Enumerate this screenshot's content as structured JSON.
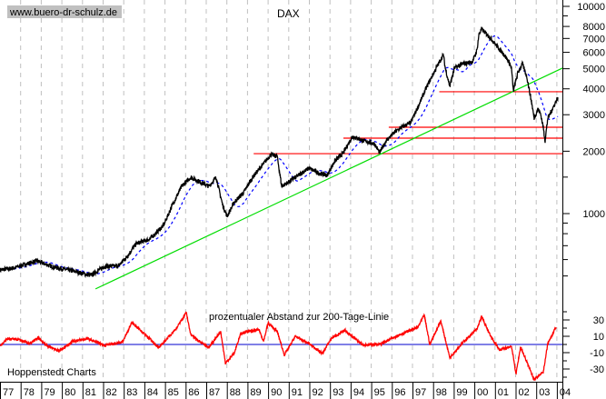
{
  "watermark": "www.buero-dr-schulz.de",
  "colors": {
    "price": "#000000",
    "moving_average": "#0000ff",
    "support_lines": "#ff0000",
    "trend_line": "#00dd00",
    "oscillator": "#ff0000",
    "zero_line": "#0000cc",
    "grid": "#c0c0c0",
    "watermark_bg": "#c0c0c0"
  },
  "chart_data": [
    {
      "type": "line",
      "title": "DAX",
      "y_scale": "log",
      "ylim": [
        400,
        11000
      ],
      "y_ticks": [
        10000,
        8000,
        7000,
        6000,
        5000,
        4000,
        3000,
        2000,
        1000
      ],
      "y_tick_labels": [
        "10000",
        "8000",
        "7000",
        "6000",
        "5000",
        "4000",
        "3000",
        "2000",
        "1000"
      ],
      "x_tick_labels": [
        "77",
        "78",
        "79",
        "80",
        "81",
        "82",
        "83",
        "84",
        "85",
        "86",
        "87",
        "88",
        "89",
        "90",
        "91",
        "92",
        "93",
        "94",
        "95",
        "96",
        "97",
        "98",
        "99",
        "00",
        "01",
        "02",
        "03",
        "04"
      ],
      "xlim": [
        1977,
        2004.3
      ],
      "grid": "vertical dashed at year boundaries",
      "series": [
        {
          "points": [
            [
              1977.0,
              535
            ],
            [
              1977.66,
              546
            ],
            [
              1978.76,
              591
            ],
            [
              1979.64,
              551
            ],
            [
              1980.52,
              529
            ],
            [
              1981.41,
              503
            ],
            [
              1982.07,
              557
            ],
            [
              1982.73,
              557
            ],
            [
              1983.17,
              622
            ],
            [
              1983.61,
              717
            ],
            [
              1984.27,
              754
            ],
            [
              1984.93,
              877
            ],
            [
              1985.37,
              1106
            ],
            [
              1985.81,
              1354
            ],
            [
              1986.25,
              1497
            ],
            [
              1986.69,
              1424
            ],
            [
              1987.13,
              1354
            ],
            [
              1987.48,
              1497
            ],
            [
              1987.79,
              1106
            ],
            [
              1988.01,
              970
            ],
            [
              1988.37,
              1140
            ],
            [
              1988.81,
              1262
            ],
            [
              1989.25,
              1497
            ],
            [
              1989.78,
              1743
            ],
            [
              1990.13,
              1928
            ],
            [
              1990.44,
              1889
            ],
            [
              1990.66,
              1354
            ],
            [
              1991.01,
              1424
            ],
            [
              1991.45,
              1528
            ],
            [
              1991.98,
              1657
            ],
            [
              1992.42,
              1575
            ],
            [
              1992.86,
              1528
            ],
            [
              1993.21,
              1779
            ],
            [
              1993.65,
              1968
            ],
            [
              1994.09,
              2360
            ],
            [
              1994.62,
              2245
            ],
            [
              1995.15,
              2176
            ],
            [
              1995.41,
              1968
            ],
            [
              1995.72,
              2245
            ],
            [
              1996.16,
              2480
            ],
            [
              1996.47,
              2610
            ],
            [
              1996.91,
              2743
            ],
            [
              1997.26,
              3259
            ],
            [
              1997.7,
              4110
            ],
            [
              1998.15,
              5033
            ],
            [
              1998.5,
              5850
            ],
            [
              1998.59,
              5033
            ],
            [
              1998.81,
              4110
            ],
            [
              1999.03,
              5033
            ],
            [
              1999.47,
              5287
            ],
            [
              1999.91,
              5395
            ],
            [
              2000.13,
              6157
            ],
            [
              2000.22,
              7303
            ],
            [
              2000.35,
              7775
            ],
            [
              2000.79,
              7030
            ],
            [
              2001.14,
              6346
            ],
            [
              2001.45,
              5850
            ],
            [
              2001.67,
              5395
            ],
            [
              2001.8,
              5033
            ],
            [
              2001.89,
              3908
            ],
            [
              2002.11,
              4786
            ],
            [
              2002.33,
              5287
            ],
            [
              2002.55,
              4550
            ],
            [
              2002.77,
              3463
            ],
            [
              2002.9,
              2885
            ],
            [
              2003.08,
              3192
            ],
            [
              2003.21,
              3038
            ],
            [
              2003.34,
              2610
            ],
            [
              2003.43,
              2245
            ],
            [
              2003.56,
              2885
            ],
            [
              2003.78,
              3192
            ],
            [
              2004.05,
              3640
            ]
          ]
        }
      ],
      "horizontal_lines": [
        {
          "value": 1946,
          "from": 1989.3
        },
        {
          "value": 2312,
          "from": 1993.65
        },
        {
          "value": 2610,
          "from": 1995.85
        },
        {
          "value": 3873,
          "from": 1998.3
        }
      ],
      "trend_line": {
        "from": [
          1981.63,
          433
        ],
        "to": [
          2004.27,
          5035
        ]
      }
    },
    {
      "type": "line",
      "title": "prozentualer Abstand zur 200-Tage-Linie",
      "ylim": [
        -47,
        42
      ],
      "y_ticks": [
        30,
        10,
        -10,
        -30
      ],
      "y_tick_labels": [
        "30",
        "10",
        "-10",
        "-30"
      ],
      "reference_line": 0,
      "series": [
        {
          "points": [
            [
              1977.0,
              -2
            ],
            [
              1977.35,
              7
            ],
            [
              1977.88,
              6
            ],
            [
              1978.45,
              1
            ],
            [
              1978.85,
              8
            ],
            [
              1979.2,
              0
            ],
            [
              1979.86,
              -8
            ],
            [
              1980.52,
              4
            ],
            [
              1981.27,
              7
            ],
            [
              1982.07,
              -1
            ],
            [
              1982.95,
              3
            ],
            [
              1983.39,
              27
            ],
            [
              1984.05,
              12
            ],
            [
              1984.71,
              -4
            ],
            [
              1985.59,
              21
            ],
            [
              1986.03,
              39
            ],
            [
              1986.25,
              12
            ],
            [
              1987.13,
              -4
            ],
            [
              1987.7,
              16
            ],
            [
              1987.93,
              -23
            ],
            [
              1988.37,
              -10
            ],
            [
              1988.67,
              14
            ],
            [
              1989.56,
              18
            ],
            [
              1989.78,
              4
            ],
            [
              1990.0,
              26
            ],
            [
              1990.44,
              16
            ],
            [
              1990.79,
              -13
            ],
            [
              1991.32,
              10
            ],
            [
              1991.98,
              1
            ],
            [
              1992.64,
              -11
            ],
            [
              1993.08,
              8
            ],
            [
              1993.74,
              17
            ],
            [
              1994.62,
              -1
            ],
            [
              1995.5,
              1
            ],
            [
              1996.38,
              12
            ],
            [
              1997.26,
              21
            ],
            [
              1997.57,
              36
            ],
            [
              1997.84,
              0
            ],
            [
              1998.37,
              29
            ],
            [
              1998.81,
              -16
            ],
            [
              1999.47,
              3
            ],
            [
              2000.13,
              19
            ],
            [
              2000.35,
              34
            ],
            [
              2000.79,
              10
            ],
            [
              2001.23,
              -7
            ],
            [
              2001.8,
              -2
            ],
            [
              2002.02,
              -36
            ],
            [
              2002.24,
              -3
            ],
            [
              2002.9,
              -43
            ],
            [
              2003.34,
              -34
            ],
            [
              2003.56,
              1
            ],
            [
              2003.96,
              21
            ]
          ]
        }
      ]
    }
  ],
  "footer_label": "Hoppenstedt Charts"
}
